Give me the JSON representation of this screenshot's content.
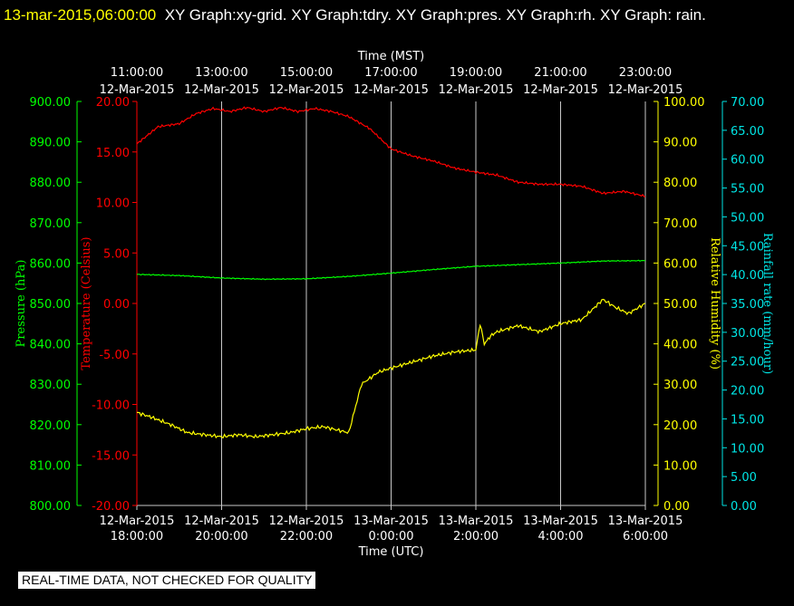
{
  "header": {
    "timestamp": "13-mar-2015,06:00:00",
    "title": "XY Graph:xy-grid.  XY Graph:tdry.  XY Graph:pres.  XY Graph:rh.  XY Graph: rain."
  },
  "footer": {
    "notice": "REAL-TIME DATA, NOT CHECKED FOR QUALITY"
  },
  "colors": {
    "background": "#000000",
    "grid": "#c8c8c8",
    "pressure": "#00ff00",
    "temperature": "#ff0000",
    "humidity": "#ffff00",
    "rain": "#00e5e5",
    "text": "#ffffff"
  },
  "chart_data": {
    "type": "line",
    "grid": true,
    "top_axis": {
      "label": "Time (MST)",
      "ticks": [
        [
          "11:00:00",
          "12-Mar-2015"
        ],
        [
          "13:00:00",
          "12-Mar-2015"
        ],
        [
          "15:00:00",
          "12-Mar-2015"
        ],
        [
          "17:00:00",
          "12-Mar-2015"
        ],
        [
          "19:00:00",
          "12-Mar-2015"
        ],
        [
          "21:00:00",
          "12-Mar-2015"
        ],
        [
          "23:00:00",
          "12-Mar-2015"
        ]
      ]
    },
    "bottom_axis": {
      "label": "Time (UTC)",
      "ticks": [
        [
          "12-Mar-2015",
          "18:00:00"
        ],
        [
          "12-Mar-2015",
          "20:00:00"
        ],
        [
          "12-Mar-2015",
          "22:00:00"
        ],
        [
          "13-Mar-2015",
          "0:00:00"
        ],
        [
          "13-Mar-2015",
          "2:00:00"
        ],
        [
          "13-Mar-2015",
          "4:00:00"
        ],
        [
          "13-Mar-2015",
          "6:00:00"
        ]
      ]
    },
    "x_range_hours": [
      0,
      12
    ],
    "axes": {
      "pressure": {
        "label": "Pressure (hPa)",
        "min": 800,
        "max": 900,
        "ticks": [
          "800.00",
          "810.00",
          "820.00",
          "830.00",
          "840.00",
          "850.00",
          "860.00",
          "870.00",
          "880.00",
          "890.00",
          "900.00"
        ]
      },
      "temperature": {
        "label": "Temperature (Celsius)",
        "min": -20,
        "max": 20,
        "ticks": [
          "-20.00",
          "-15.00",
          "-10.00",
          "-5.00",
          "0.00",
          "5.00",
          "10.00",
          "15.00",
          "20.00"
        ]
      },
      "humidity": {
        "label": "Relative Humidity (%)",
        "min": 0,
        "max": 100,
        "ticks": [
          "0.00",
          "10.00",
          "20.00",
          "30.00",
          "40.00",
          "50.00",
          "60.00",
          "70.00",
          "80.00",
          "90.00",
          "100.00"
        ]
      },
      "rain": {
        "label": "Rainfall rate (mm/hour)",
        "min": 0,
        "max": 70,
        "ticks": [
          "0.00",
          "5.00",
          "10.00",
          "15.00",
          "20.00",
          "25.00",
          "30.00",
          "35.00",
          "40.00",
          "45.00",
          "50.00",
          "55.00",
          "60.00",
          "65.00",
          "70.00"
        ]
      }
    },
    "series": [
      {
        "name": "tdry",
        "axis": "temperature",
        "x": [
          0,
          0.5,
          1,
          1.4,
          1.8,
          2.2,
          2.6,
          3,
          3.4,
          3.8,
          4.2,
          4.6,
          5,
          5.5,
          6,
          6.5,
          7,
          7.5,
          8,
          8.5,
          9,
          9.5,
          10,
          10.5,
          11,
          11.5,
          12
        ],
        "y": [
          15.8,
          17.5,
          17.8,
          18.8,
          19.3,
          19.0,
          19.4,
          19.0,
          19.4,
          19.0,
          19.3,
          19.0,
          18.5,
          17.3,
          15.3,
          14.6,
          14.1,
          13.4,
          13.0,
          12.7,
          12.0,
          11.8,
          11.8,
          11.6,
          10.9,
          11.1,
          10.6
        ]
      },
      {
        "name": "pres",
        "axis": "pressure",
        "x": [
          0,
          1,
          2,
          3,
          4,
          5,
          6,
          7,
          8,
          9,
          10,
          11,
          12
        ],
        "y": [
          857.2,
          856.9,
          856.3,
          856.0,
          856.1,
          856.7,
          857.5,
          858.4,
          859.2,
          859.6,
          860.0,
          860.5,
          860.6
        ]
      },
      {
        "name": "rh",
        "axis": "humidity",
        "x": [
          0,
          0.3,
          0.8,
          1.2,
          1.6,
          2.0,
          2.4,
          2.8,
          3.2,
          3.6,
          4.0,
          4.4,
          4.8,
          5.0,
          5.3,
          5.7,
          6.0,
          6.5,
          7.0,
          7.5,
          8.0,
          8.1,
          8.2,
          8.35,
          8.5,
          9.0,
          9.5,
          10.0,
          10.5,
          11.0,
          11.3,
          11.6,
          12.0
        ],
        "y": [
          23,
          22,
          20,
          18,
          17.5,
          17,
          17.5,
          17,
          17.5,
          18,
          19,
          19.5,
          18.5,
          18,
          30,
          33,
          34,
          35.5,
          37,
          38,
          38.5,
          45,
          40,
          42,
          43,
          44.5,
          43,
          45,
          46,
          51,
          49,
          47.5,
          50
        ]
      },
      {
        "name": "rain",
        "axis": "rain",
        "x": [],
        "y": []
      }
    ]
  }
}
